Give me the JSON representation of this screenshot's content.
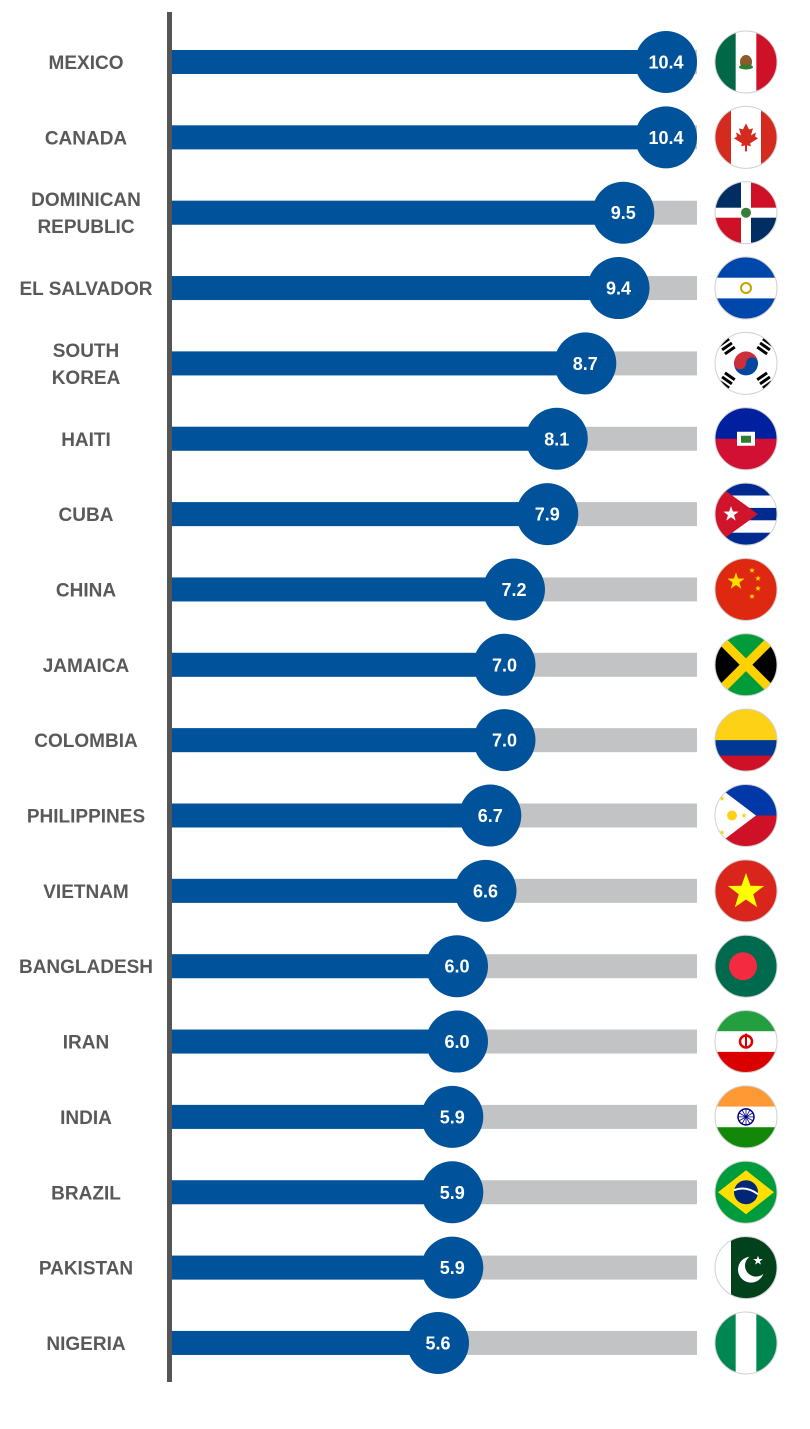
{
  "chart_data": {
    "type": "bar",
    "orientation": "horizontal",
    "title": "",
    "xlabel": "",
    "ylabel": "",
    "xlim": [
      0,
      10.4
    ],
    "grid": false,
    "colors": {
      "bar": "#00539b",
      "track": "#c2c3c5",
      "axis": "#555555",
      "label": "#595959",
      "value_text": "#ffffff"
    },
    "categories": [
      {
        "label": [
          "MEXICO"
        ],
        "flag": "mexico-flag-icon"
      },
      {
        "label": [
          "CANADA"
        ],
        "flag": "canada-flag-icon"
      },
      {
        "label": [
          "DOMINICAN",
          "REPUBLIC"
        ],
        "flag": "dominican-republic-flag-icon"
      },
      {
        "label": [
          "EL SALVADOR"
        ],
        "flag": "el-salvador-flag-icon"
      },
      {
        "label": [
          "SOUTH",
          "KOREA"
        ],
        "flag": "south-korea-flag-icon"
      },
      {
        "label": [
          "HAITI"
        ],
        "flag": "haiti-flag-icon"
      },
      {
        "label": [
          "CUBA"
        ],
        "flag": "cuba-flag-icon"
      },
      {
        "label": [
          "CHINA"
        ],
        "flag": "china-flag-icon"
      },
      {
        "label": [
          "JAMAICA"
        ],
        "flag": "jamaica-flag-icon"
      },
      {
        "label": [
          "COLOMBIA"
        ],
        "flag": "colombia-flag-icon"
      },
      {
        "label": [
          "PHILIPPINES"
        ],
        "flag": "philippines-flag-icon"
      },
      {
        "label": [
          "VIETNAM"
        ],
        "flag": "vietnam-flag-icon"
      },
      {
        "label": [
          "BANGLADESH"
        ],
        "flag": "bangladesh-flag-icon"
      },
      {
        "label": [
          "IRAN"
        ],
        "flag": "iran-flag-icon"
      },
      {
        "label": [
          "INDIA"
        ],
        "flag": "india-flag-icon"
      },
      {
        "label": [
          "BRAZIL"
        ],
        "flag": "brazil-flag-icon"
      },
      {
        "label": [
          "PAKISTAN"
        ],
        "flag": "pakistan-flag-icon"
      },
      {
        "label": [
          "NIGERIA"
        ],
        "flag": "nigeria-flag-icon"
      }
    ],
    "values": [
      10.4,
      10.4,
      9.5,
      9.4,
      8.7,
      8.1,
      7.9,
      7.2,
      7.0,
      7.0,
      6.7,
      6.6,
      6.0,
      6.0,
      5.9,
      5.9,
      5.9,
      5.6
    ],
    "value_labels": [
      "10.4",
      "10.4",
      "9.5",
      "9.4",
      "8.7",
      "8.1",
      "7.9",
      "7.2",
      "7.0",
      "7.0",
      "6.7",
      "6.6",
      "6.0",
      "6.0",
      "5.9",
      "5.9",
      "5.9",
      "5.6"
    ]
  }
}
